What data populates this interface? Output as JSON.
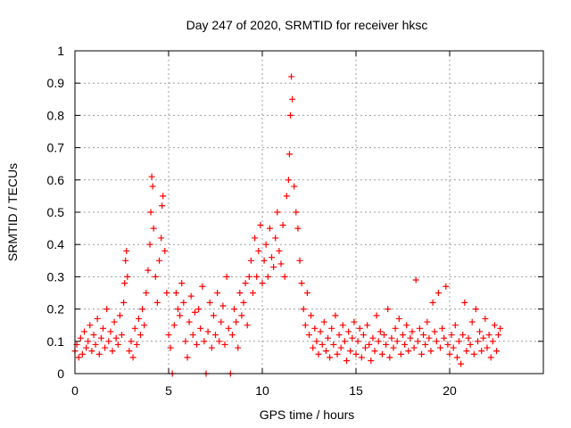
{
  "chart_data": {
    "type": "scatter",
    "title": "Day 247 of 2020, SRMTID for receiver hksc",
    "xlabel": "GPS time / hours",
    "ylabel": "SRMTID / TECUs",
    "xlim": [
      0,
      25
    ],
    "ylim": [
      0,
      1
    ],
    "xticks": [
      0,
      5,
      10,
      15,
      20
    ],
    "xtick_labels": [
      "0",
      "5",
      "10",
      "15",
      "20"
    ],
    "yticks": [
      0,
      0.1,
      0.2,
      0.3,
      0.4,
      0.5,
      0.6,
      0.7,
      0.8,
      0.9,
      1
    ],
    "ytick_labels": [
      "0",
      "0.1",
      "0.2",
      "0.3",
      "0.4",
      "0.5",
      "0.6",
      "0.7",
      "0.8",
      "0.9",
      "1"
    ],
    "grid": true,
    "marker": "plus",
    "series": [
      {
        "name": "SRMTID",
        "color": "#ff0000",
        "points": [
          [
            0.0,
            0.07
          ],
          [
            0.1,
            0.09
          ],
          [
            0.2,
            0.05
          ],
          [
            0.3,
            0.11
          ],
          [
            0.4,
            0.06
          ],
          [
            0.5,
            0.13
          ],
          [
            0.6,
            0.08
          ],
          [
            0.7,
            0.1
          ],
          [
            0.8,
            0.15
          ],
          [
            0.9,
            0.07
          ],
          [
            1.0,
            0.12
          ],
          [
            1.1,
            0.09
          ],
          [
            1.2,
            0.17
          ],
          [
            1.3,
            0.06
          ],
          [
            1.4,
            0.11
          ],
          [
            1.5,
            0.14
          ],
          [
            1.6,
            0.08
          ],
          [
            1.7,
            0.2
          ],
          [
            1.8,
            0.1
          ],
          [
            1.9,
            0.13
          ],
          [
            2.0,
            0.07
          ],
          [
            2.1,
            0.16
          ],
          [
            2.2,
            0.11
          ],
          [
            2.3,
            0.09
          ],
          [
            2.4,
            0.18
          ],
          [
            2.5,
            0.12
          ],
          [
            2.6,
            0.22
          ],
          [
            2.65,
            0.28
          ],
          [
            2.7,
            0.35
          ],
          [
            2.75,
            0.38
          ],
          [
            2.8,
            0.3
          ],
          [
            2.9,
            0.07
          ],
          [
            3.0,
            0.1
          ],
          [
            3.1,
            0.05
          ],
          [
            3.2,
            0.14
          ],
          [
            3.3,
            0.09
          ],
          [
            3.4,
            0.17
          ],
          [
            3.5,
            0.12
          ],
          [
            3.6,
            0.2
          ],
          [
            3.7,
            0.15
          ],
          [
            3.8,
            0.25
          ],
          [
            3.9,
            0.32
          ],
          [
            4.0,
            0.4
          ],
          [
            4.05,
            0.5
          ],
          [
            4.1,
            0.61
          ],
          [
            4.15,
            0.58
          ],
          [
            4.2,
            0.45
          ],
          [
            4.3,
            0.3
          ],
          [
            4.4,
            0.22
          ],
          [
            4.5,
            0.35
          ],
          [
            4.6,
            0.42
          ],
          [
            4.65,
            0.52
          ],
          [
            4.7,
            0.55
          ],
          [
            4.8,
            0.38
          ],
          [
            4.9,
            0.25
          ],
          [
            5.0,
            0.12
          ],
          [
            5.1,
            0.08
          ],
          [
            5.2,
            0.0
          ],
          [
            5.3,
            0.15
          ],
          [
            5.4,
            0.25
          ],
          [
            5.5,
            0.2
          ],
          [
            5.6,
            0.18
          ],
          [
            5.7,
            0.28
          ],
          [
            5.8,
            0.22
          ],
          [
            5.9,
            0.1
          ],
          [
            6.0,
            0.05
          ],
          [
            6.1,
            0.16
          ],
          [
            6.2,
            0.24
          ],
          [
            6.3,
            0.12
          ],
          [
            6.4,
            0.19
          ],
          [
            6.5,
            0.09
          ],
          [
            6.6,
            0.2
          ],
          [
            6.7,
            0.14
          ],
          [
            6.8,
            0.27
          ],
          [
            6.9,
            0.1
          ],
          [
            7.0,
            0.0
          ],
          [
            7.1,
            0.13
          ],
          [
            7.2,
            0.22
          ],
          [
            7.3,
            0.08
          ],
          [
            7.4,
            0.18
          ],
          [
            7.5,
            0.12
          ],
          [
            7.6,
            0.25
          ],
          [
            7.7,
            0.1
          ],
          [
            7.8,
            0.16
          ],
          [
            7.9,
            0.21
          ],
          [
            8.0,
            0.09
          ],
          [
            8.1,
            0.3
          ],
          [
            8.2,
            0.14
          ],
          [
            8.3,
            0.0
          ],
          [
            8.4,
            0.12
          ],
          [
            8.5,
            0.2
          ],
          [
            8.6,
            0.16
          ],
          [
            8.7,
            0.08
          ],
          [
            8.8,
            0.25
          ],
          [
            8.9,
            0.18
          ],
          [
            9.0,
            0.22
          ],
          [
            9.1,
            0.28
          ],
          [
            9.2,
            0.15
          ],
          [
            9.3,
            0.3
          ],
          [
            9.4,
            0.35
          ],
          [
            9.5,
            0.25
          ],
          [
            9.6,
            0.42
          ],
          [
            9.7,
            0.3
          ],
          [
            9.8,
            0.38
          ],
          [
            9.9,
            0.46
          ],
          [
            10.0,
            0.28
          ],
          [
            10.1,
            0.35
          ],
          [
            10.2,
            0.4
          ],
          [
            10.3,
            0.3
          ],
          [
            10.4,
            0.45
          ],
          [
            10.5,
            0.36
          ],
          [
            10.6,
            0.33
          ],
          [
            10.7,
            0.42
          ],
          [
            10.8,
            0.5
          ],
          [
            10.9,
            0.38
          ],
          [
            11.0,
            0.34
          ],
          [
            11.1,
            0.46
          ],
          [
            11.2,
            0.3
          ],
          [
            11.3,
            0.55
          ],
          [
            11.4,
            0.6
          ],
          [
            11.45,
            0.68
          ],
          [
            11.5,
            0.8
          ],
          [
            11.55,
            0.92
          ],
          [
            11.6,
            0.85
          ],
          [
            11.7,
            0.58
          ],
          [
            11.8,
            0.5
          ],
          [
            11.9,
            0.45
          ],
          [
            12.0,
            0.35
          ],
          [
            12.1,
            0.28
          ],
          [
            12.2,
            0.2
          ],
          [
            12.3,
            0.15
          ],
          [
            12.4,
            0.25
          ],
          [
            12.5,
            0.12
          ],
          [
            12.6,
            0.18
          ],
          [
            12.7,
            0.08
          ],
          [
            12.8,
            0.14
          ],
          [
            12.9,
            0.1
          ],
          [
            13.0,
            0.06
          ],
          [
            13.1,
            0.13
          ],
          [
            13.2,
            0.09
          ],
          [
            13.3,
            0.16
          ],
          [
            13.4,
            0.07
          ],
          [
            13.5,
            0.11
          ],
          [
            13.6,
            0.05
          ],
          [
            13.7,
            0.14
          ],
          [
            13.8,
            0.09
          ],
          [
            13.9,
            0.18
          ],
          [
            14.0,
            0.06
          ],
          [
            14.1,
            0.12
          ],
          [
            14.2,
            0.08
          ],
          [
            14.3,
            0.15
          ],
          [
            14.4,
            0.1
          ],
          [
            14.5,
            0.04
          ],
          [
            14.6,
            0.13
          ],
          [
            14.7,
            0.07
          ],
          [
            14.8,
            0.11
          ],
          [
            14.9,
            0.16
          ],
          [
            15.0,
            0.06
          ],
          [
            15.1,
            0.1
          ],
          [
            15.2,
            0.14
          ],
          [
            15.3,
            0.05
          ],
          [
            15.4,
            0.12
          ],
          [
            15.5,
            0.08
          ],
          [
            15.6,
            0.15
          ],
          [
            15.7,
            0.09
          ],
          [
            15.8,
            0.04
          ],
          [
            15.9,
            0.11
          ],
          [
            16.0,
            0.07
          ],
          [
            16.1,
            0.18
          ],
          [
            16.2,
            0.1
          ],
          [
            16.3,
            0.13
          ],
          [
            16.4,
            0.06
          ],
          [
            16.5,
            0.12
          ],
          [
            16.6,
            0.09
          ],
          [
            16.7,
            0.2
          ],
          [
            16.8,
            0.05
          ],
          [
            16.9,
            0.11
          ],
          [
            17.0,
            0.08
          ],
          [
            17.1,
            0.14
          ],
          [
            17.2,
            0.1
          ],
          [
            17.3,
            0.17
          ],
          [
            17.4,
            0.06
          ],
          [
            17.5,
            0.12
          ],
          [
            17.6,
            0.09
          ],
          [
            17.7,
            0.15
          ],
          [
            17.8,
            0.07
          ],
          [
            17.9,
            0.11
          ],
          [
            18.0,
            0.13
          ],
          [
            18.1,
            0.08
          ],
          [
            18.2,
            0.29
          ],
          [
            18.3,
            0.1
          ],
          [
            18.4,
            0.14
          ],
          [
            18.5,
            0.06
          ],
          [
            18.6,
            0.12
          ],
          [
            18.7,
            0.09
          ],
          [
            18.8,
            0.16
          ],
          [
            18.9,
            0.11
          ],
          [
            19.0,
            0.07
          ],
          [
            19.1,
            0.22
          ],
          [
            19.2,
            0.13
          ],
          [
            19.3,
            0.1
          ],
          [
            19.4,
            0.25
          ],
          [
            19.5,
            0.08
          ],
          [
            19.6,
            0.14
          ],
          [
            19.7,
            0.11
          ],
          [
            19.8,
            0.27
          ],
          [
            19.9,
            0.09
          ],
          [
            20.0,
            0.06
          ],
          [
            20.1,
            0.12
          ],
          [
            20.2,
            0.08
          ],
          [
            20.3,
            0.15
          ],
          [
            20.4,
            0.05
          ],
          [
            20.5,
            0.1
          ],
          [
            20.6,
            0.03
          ],
          [
            20.7,
            0.12
          ],
          [
            20.8,
            0.22
          ],
          [
            20.9,
            0.07
          ],
          [
            21.0,
            0.11
          ],
          [
            21.1,
            0.09
          ],
          [
            21.2,
            0.16
          ],
          [
            21.3,
            0.06
          ],
          [
            21.4,
            0.2
          ],
          [
            21.5,
            0.1
          ],
          [
            21.6,
            0.13
          ],
          [
            21.7,
            0.07
          ],
          [
            21.8,
            0.11
          ],
          [
            21.9,
            0.17
          ],
          [
            22.0,
            0.08
          ],
          [
            22.1,
            0.12
          ],
          [
            22.2,
            0.05
          ],
          [
            22.3,
            0.1
          ],
          [
            22.4,
            0.15
          ],
          [
            22.5,
            0.07
          ],
          [
            22.6,
            0.12
          ],
          [
            22.7,
            0.14
          ]
        ]
      }
    ]
  }
}
